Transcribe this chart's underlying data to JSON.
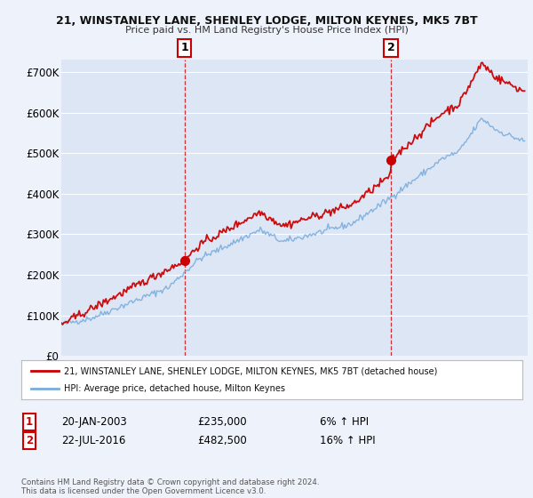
{
  "title": "21, WINSTANLEY LANE, SHENLEY LODGE, MILTON KEYNES, MK5 7BT",
  "subtitle": "Price paid vs. HM Land Registry's House Price Index (HPI)",
  "ylabel_ticks": [
    "£0",
    "£100K",
    "£200K",
    "£300K",
    "£400K",
    "£500K",
    "£600K",
    "£700K"
  ],
  "ytick_values": [
    0,
    100000,
    200000,
    300000,
    400000,
    500000,
    600000,
    700000
  ],
  "ylim": [
    0,
    730000
  ],
  "background_color": "#eef2fa",
  "plot_bg_color": "#dde6f5",
  "grid_color": "#ffffff",
  "red_line_color": "#cc0000",
  "blue_line_color": "#7aaddd",
  "marker1_date_label": "20-JAN-2003",
  "marker1_price": "£235,000",
  "marker1_hpi": "6% ↑ HPI",
  "marker1_year": 2003.05,
  "marker1_value": 235000,
  "marker2_date_label": "22-JUL-2016",
  "marker2_price": "£482,500",
  "marker2_hpi": "16% ↑ HPI",
  "marker2_year": 2016.55,
  "marker2_value": 482500,
  "legend_line1": "21, WINSTANLEY LANE, SHENLEY LODGE, MILTON KEYNES, MK5 7BT (detached house)",
  "legend_line2": "HPI: Average price, detached house, Milton Keynes",
  "footnote": "Contains HM Land Registry data © Crown copyright and database right 2024.\nThis data is licensed under the Open Government Licence v3.0.",
  "xmin": 1995,
  "xmax": 2025.5
}
